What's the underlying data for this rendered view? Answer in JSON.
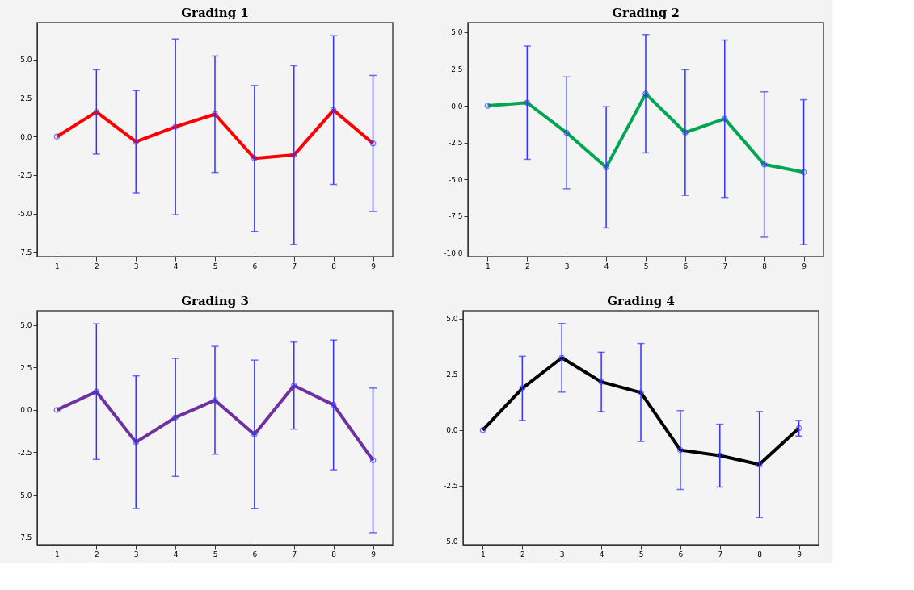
{
  "chart_data": [
    {
      "type": "line",
      "title": "Grading 1",
      "x": [
        1,
        2,
        3,
        4,
        5,
        6,
        7,
        8,
        9
      ],
      "xlim": [
        0.5,
        9.5
      ],
      "xticks": [
        1,
        2,
        3,
        4,
        5,
        6,
        7,
        8,
        9
      ],
      "ylim": [
        -7.8,
        7.4
      ],
      "yticks": [
        {
          "value": -7.5,
          "label": "-7.5"
        },
        {
          "value": -5,
          "label": "-5.0"
        },
        {
          "value": -2.5,
          "label": "-2.5"
        },
        {
          "value": 0,
          "label": "0.0"
        },
        {
          "value": 2.5,
          "label": "2.5"
        },
        {
          "value": 5,
          "label": "5.0"
        }
      ],
      "marker": "circle",
      "grid": false,
      "series": [
        {
          "color": "#ff0000",
          "values": [
            0,
            1.6,
            -0.34,
            0.63,
            1.45,
            -1.42,
            -1.2,
            1.72,
            -0.45
          ],
          "errors": [
            null,
            2.74,
            3.32,
            5.71,
            3.78,
            4.74,
            5.8,
            4.83,
            4.42
          ]
        }
      ]
    },
    {
      "type": "line",
      "title": "Grading 2",
      "x": [
        1,
        2,
        3,
        4,
        5,
        6,
        7,
        8,
        9
      ],
      "xlim": [
        0.5,
        9.5
      ],
      "xticks": [
        1,
        2,
        3,
        4,
        5,
        6,
        7,
        8,
        9
      ],
      "ylim": [
        -10.25,
        5.65
      ],
      "yticks": [
        {
          "value": -10,
          "label": "-10.0"
        },
        {
          "value": -7.5,
          "label": "-7.5"
        },
        {
          "value": -5,
          "label": "-5.0"
        },
        {
          "value": -2.5,
          "label": "-2.5"
        },
        {
          "value": 0,
          "label": "0.0"
        },
        {
          "value": 2.5,
          "label": "2.5"
        },
        {
          "value": 5,
          "label": "5.0"
        }
      ],
      "marker": "circle",
      "grid": false,
      "series": [
        {
          "color": "#00a651",
          "values": [
            0,
            0.21,
            -1.84,
            -4.18,
            0.82,
            -1.82,
            -0.88,
            -3.99,
            -4.51
          ],
          "errors": [
            null,
            3.85,
            3.8,
            4.12,
            4.02,
            4.27,
            5.35,
            4.94,
            4.92
          ]
        }
      ]
    },
    {
      "type": "line",
      "title": "Grading 3",
      "x": [
        1,
        2,
        3,
        4,
        5,
        6,
        7,
        8,
        9
      ],
      "xlim": [
        0.5,
        9.5
      ],
      "xticks": [
        1,
        2,
        3,
        4,
        5,
        6,
        7,
        8,
        9
      ],
      "ylim": [
        -7.95,
        5.85
      ],
      "yticks": [
        {
          "value": -7.5,
          "label": "-7.5"
        },
        {
          "value": -5,
          "label": "-5.0"
        },
        {
          "value": -2.5,
          "label": "-2.5"
        },
        {
          "value": 0,
          "label": "0.0"
        },
        {
          "value": 2.5,
          "label": "2.5"
        },
        {
          "value": 5,
          "label": "5.0"
        }
      ],
      "marker": "circle",
      "grid": false,
      "series": [
        {
          "color": "#7030a0",
          "values": [
            0,
            1.08,
            -1.9,
            -0.44,
            0.57,
            -1.44,
            1.44,
            0.3,
            -2.97
          ],
          "errors": [
            null,
            4.0,
            3.91,
            3.48,
            3.18,
            4.38,
            2.57,
            3.83,
            4.26
          ]
        }
      ]
    },
    {
      "type": "line",
      "title": "Grading 4",
      "x": [
        1,
        2,
        3,
        4,
        5,
        6,
        7,
        8,
        9
      ],
      "xlim": [
        0.5,
        9.5
      ],
      "xticks": [
        1,
        2,
        3,
        4,
        5,
        6,
        7,
        8,
        9
      ],
      "ylim": [
        -5.15,
        5.35
      ],
      "yticks": [
        {
          "value": -5,
          "label": "-5.0"
        },
        {
          "value": -2.5,
          "label": "-2.5"
        },
        {
          "value": 0,
          "label": "0.0"
        },
        {
          "value": 2.5,
          "label": "2.5"
        },
        {
          "value": 5,
          "label": "5.0"
        }
      ],
      "marker": "circle",
      "grid": false,
      "series": [
        {
          "color": "#000000",
          "values": [
            0,
            1.87,
            3.24,
            2.16,
            1.68,
            -0.9,
            -1.15,
            -1.55,
            0.08
          ],
          "errors": [
            null,
            1.44,
            1.54,
            1.33,
            2.2,
            1.77,
            1.41,
            2.38,
            0.35
          ]
        }
      ]
    }
  ]
}
